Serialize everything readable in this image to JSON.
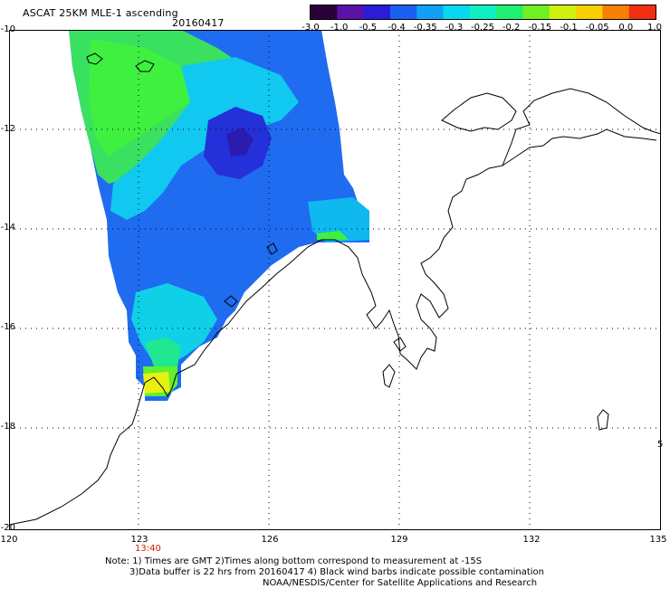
{
  "header": {
    "title": "ASCAT 25KM MLE-1 ascending",
    "date": "20160417"
  },
  "colorbar": {
    "labels": [
      "-3.0",
      "-1.0",
      "-0.5",
      "-0.4",
      "-0.35",
      "-0.3",
      "-0.25",
      "-0.2",
      "-0.15",
      "-0.1",
      "-0.05",
      "0.0",
      "1.0"
    ],
    "colors": [
      "#2a0038",
      "#5a12a8",
      "#2a1cd8",
      "#1a60f0",
      "#10a0f8",
      "#08d8f0",
      "#10f0c0",
      "#20f070",
      "#70f020",
      "#d0f010",
      "#f8d000",
      "#f88000",
      "#f03010"
    ]
  },
  "map": {
    "lat_labels": [
      "-10",
      "-12",
      "-14",
      "-16",
      "-18",
      "-20"
    ],
    "lon_labels": [
      "120",
      "123",
      "126",
      "129",
      "132",
      "135"
    ],
    "time_label": "13:40",
    "time_color": "#d02000",
    "land_edge_label": "5"
  },
  "notes": {
    "line1": "Note: 1) Times are GMT 2)Times along bottom correspond to measurement at -15S",
    "line2": "3)Data buffer is 22 hrs from 20160417 4) Black wind barbs indicate possible contamination",
    "line3": "NOAA/NESDIS/Center for Satellite Applications and Research"
  }
}
